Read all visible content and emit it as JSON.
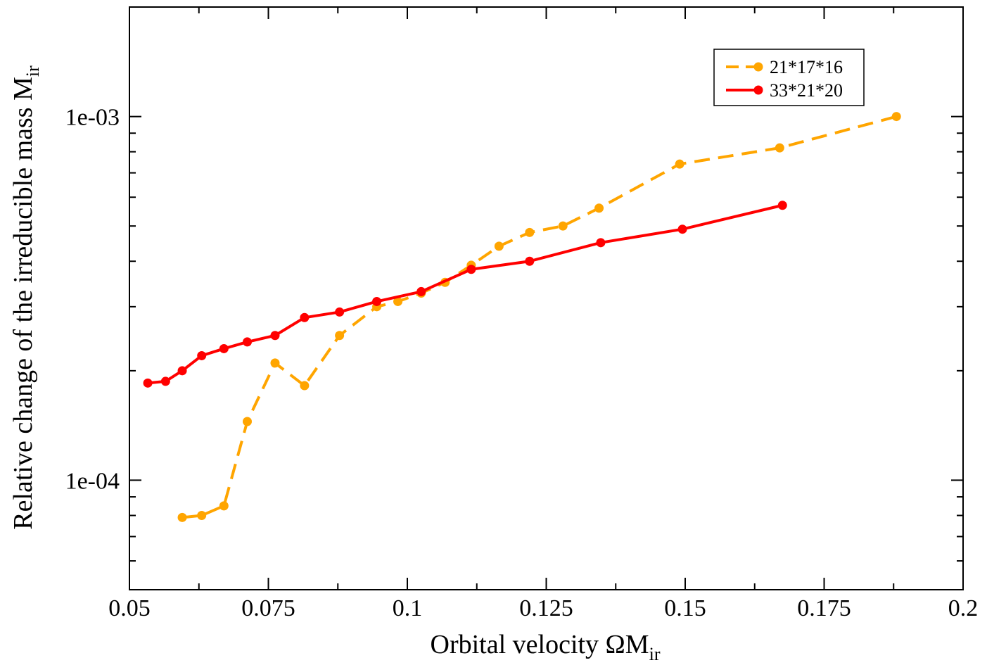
{
  "chart_data": {
    "type": "line",
    "xlabel": {
      "main": "Orbital velocity ΩM",
      "sub": "ir"
    },
    "ylabel": {
      "main": "Relative change of the irreducible mass M",
      "sub": "ir"
    },
    "xlim": [
      0.05,
      0.2
    ],
    "ylim": [
      5e-05,
      0.002
    ],
    "yscale": "log",
    "xticks": [
      {
        "value": 0.05,
        "label": "0.05"
      },
      {
        "value": 0.075,
        "label": "0.075"
      },
      {
        "value": 0.1,
        "label": "0.1"
      },
      {
        "value": 0.125,
        "label": "0.125"
      },
      {
        "value": 0.15,
        "label": "0.15"
      },
      {
        "value": 0.175,
        "label": "0.175"
      },
      {
        "value": 0.2,
        "label": "0.2"
      }
    ],
    "yticks": [
      {
        "value": 0.0001,
        "label": "1e-04"
      },
      {
        "value": 0.001,
        "label": "1e-03"
      }
    ],
    "legend_position": "top-right",
    "series": [
      {
        "name": "21*17*16",
        "color": "#ffa500",
        "dashed": true,
        "x": [
          0.0595,
          0.063,
          0.067,
          0.0712,
          0.0762,
          0.0815,
          0.0878,
          0.0945,
          0.0983,
          0.1025,
          0.1068,
          0.1115,
          0.1165,
          0.122,
          0.128,
          0.1345,
          0.149,
          0.167,
          0.188
        ],
        "y": [
          7.9e-05,
          8e-05,
          8.5e-05,
          0.000145,
          0.00021,
          0.000182,
          0.00025,
          0.0003,
          0.00031,
          0.000327,
          0.00035,
          0.00039,
          0.00044,
          0.00048,
          0.0005,
          0.00056,
          0.00074,
          0.00082,
          0.001
        ]
      },
      {
        "name": "33*21*20",
        "color": "#ff0000",
        "dashed": false,
        "x": [
          0.0533,
          0.0565,
          0.0595,
          0.063,
          0.067,
          0.0712,
          0.0762,
          0.0815,
          0.0878,
          0.0945,
          0.1025,
          0.1115,
          0.122,
          0.1348,
          0.1495,
          0.1675
        ],
        "y": [
          0.000185,
          0.000187,
          0.0002,
          0.00022,
          0.00023,
          0.00024,
          0.00025,
          0.00028,
          0.00029,
          0.00031,
          0.00033,
          0.00038,
          0.0004,
          0.00045,
          0.00049,
          0.00057
        ]
      }
    ]
  }
}
